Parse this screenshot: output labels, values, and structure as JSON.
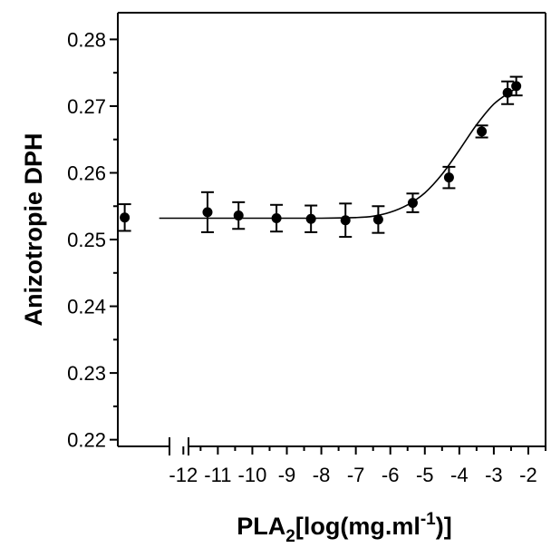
{
  "chart_data": {
    "type": "scatter",
    "title": "",
    "xlabel": {
      "main": "PLA",
      "sub": "2",
      "rest1": "[log(mg.ml",
      "sup": "-1",
      "rest2": ")]"
    },
    "ylabel": "Anizotropie DPH",
    "xlim": [
      -13.9,
      -1.5
    ],
    "ylim": [
      0.219,
      0.284
    ],
    "axis_break": true,
    "x_ticks": [
      -12,
      -11,
      -10,
      -9,
      -8,
      -7,
      -6,
      -5,
      -4,
      -3,
      -2
    ],
    "x_tick_labels": [
      "-12",
      "-11",
      "-10",
      "-9",
      "-8",
      "-7",
      "-6",
      "-5",
      "-4",
      "-3",
      "-2"
    ],
    "y_ticks": [
      0.22,
      0.23,
      0.24,
      0.25,
      0.26,
      0.27,
      0.28
    ],
    "y_tick_labels": [
      "0.22",
      "0.23",
      "0.24",
      "0.25",
      "0.26",
      "0.27",
      "0.28"
    ],
    "grid": false,
    "series": [
      {
        "kind": "points",
        "color": "#000000",
        "x": [
          -13.7,
          -11.3,
          -10.4,
          -9.3,
          -8.3,
          -7.3,
          -6.35,
          -5.35,
          -4.3,
          -3.35,
          -2.6,
          -2.35
        ],
        "y": [
          0.2533,
          0.2541,
          0.2536,
          0.2532,
          0.2531,
          0.2529,
          0.253,
          0.2555,
          0.2593,
          0.2662,
          0.272,
          0.273
        ],
        "yerr": [
          0.002,
          0.003,
          0.002,
          0.002,
          0.002,
          0.0025,
          0.002,
          0.0014,
          0.0016,
          0.0009,
          0.0017,
          0.0014
        ]
      },
      {
        "kind": "fit",
        "color": "#000000",
        "x": [
          -12.7,
          -10,
          -8,
          -7,
          -6.5,
          -6,
          -5.5,
          -5,
          -4.5,
          -4,
          -3.5,
          -3,
          -2.5,
          -2.35
        ],
        "y": [
          0.2532,
          0.2532,
          0.2532,
          0.2533,
          0.2535,
          0.2541,
          0.2552,
          0.257,
          0.2598,
          0.2634,
          0.2672,
          0.2703,
          0.2722,
          0.2726
        ]
      }
    ]
  }
}
